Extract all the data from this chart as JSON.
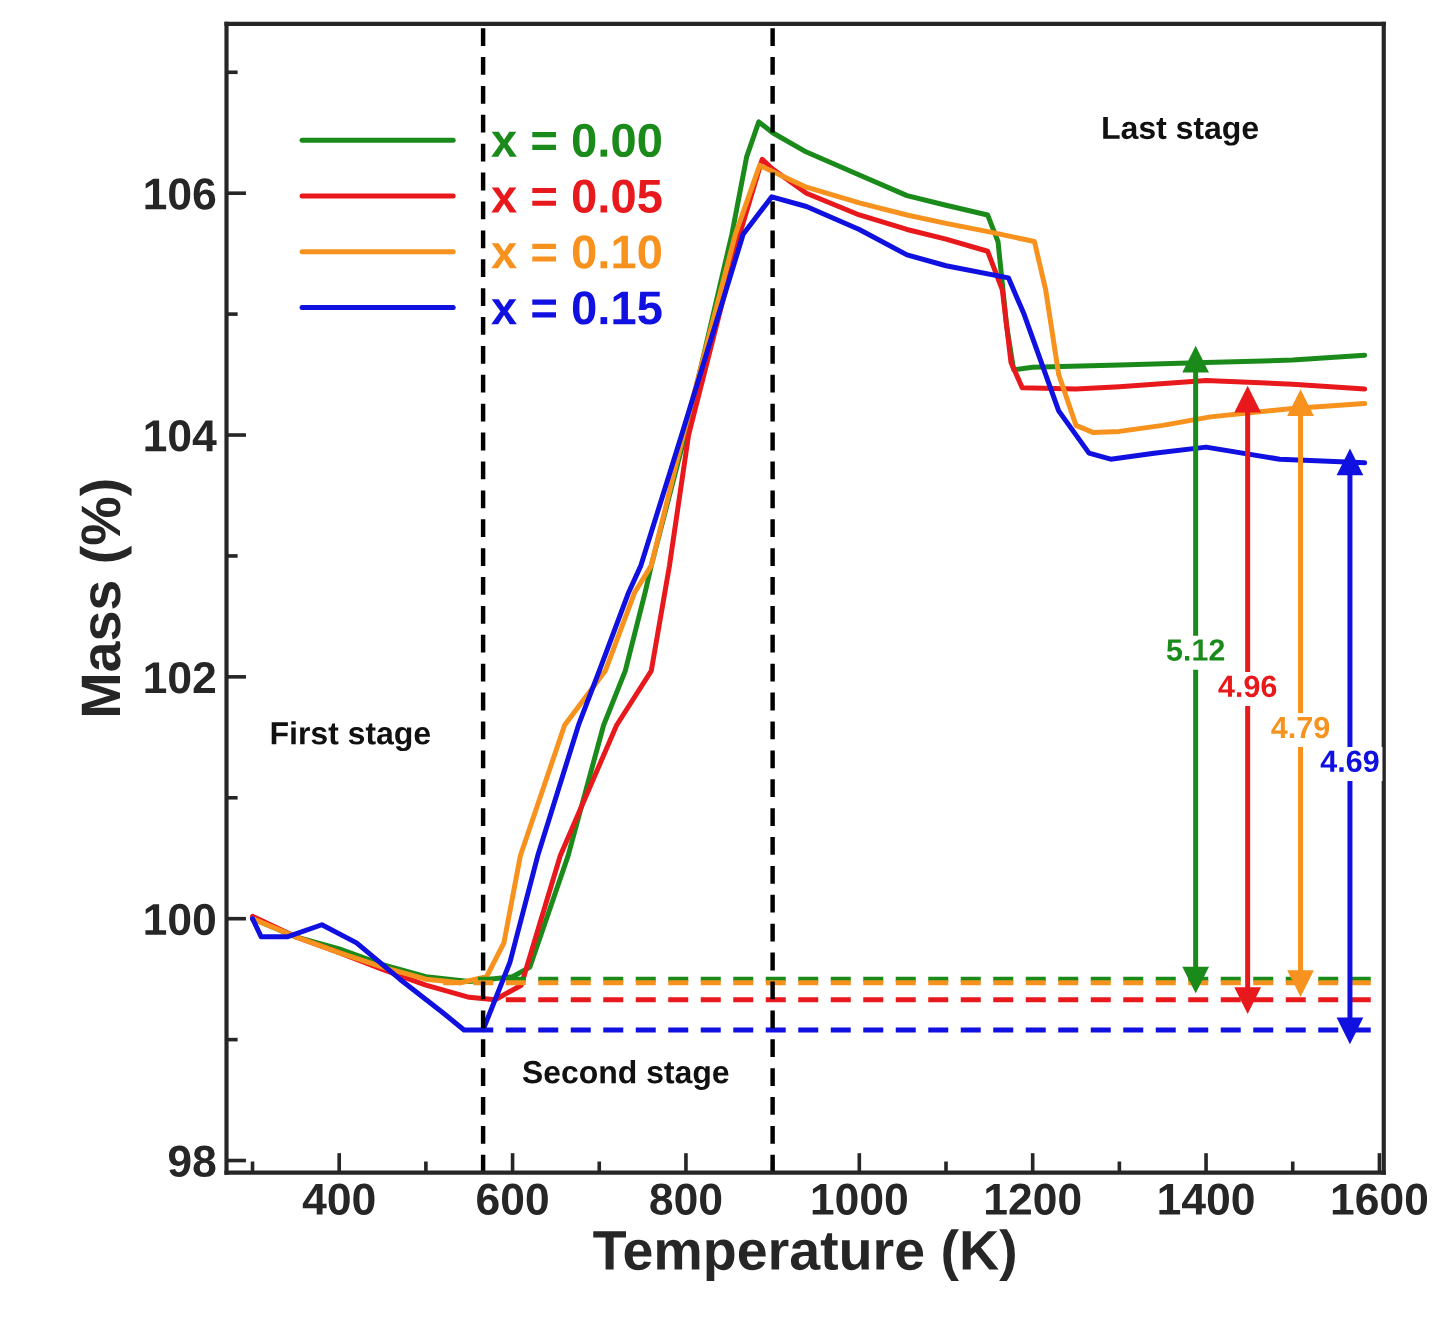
{
  "chart_data": {
    "type": "line",
    "xlabel": "Temperature (K)",
    "ylabel": "Mass (%)",
    "xlim": [
      270,
      1605
    ],
    "ylim": [
      97.9,
      107.4
    ],
    "xticks": [
      400,
      600,
      800,
      1000,
      1200,
      1400,
      1600
    ],
    "yticks": [
      98,
      100,
      102,
      104,
      106
    ],
    "grid": false,
    "legend": "top left",
    "line_style": "solid",
    "marker": "none",
    "series": [
      {
        "name": "x = 0.00",
        "color": "#1a8a1a",
        "x": [
          300,
          350,
          400,
          450,
          500,
          550,
          600,
          620,
          664,
          705,
          730,
          753,
          760,
          799,
          853,
          870,
          884,
          900,
          939,
          1000,
          1055,
          1100,
          1148,
          1160,
          1170,
          1178,
          1200,
          1300,
          1400,
          1500,
          1583
        ],
        "values": [
          100.0,
          99.85,
          99.75,
          99.62,
          99.52,
          99.48,
          99.52,
          99.6,
          100.52,
          101.6,
          102.05,
          102.7,
          102.92,
          104.0,
          105.66,
          106.3,
          106.59,
          106.5,
          106.34,
          106.15,
          105.98,
          105.9,
          105.82,
          105.6,
          104.9,
          104.54,
          104.56,
          104.58,
          104.6,
          104.62,
          104.66
        ]
      },
      {
        "name": "x = 0.05",
        "color": "#e8191c",
        "x": [
          300,
          350,
          400,
          450,
          500,
          550,
          580,
          610,
          655,
          720,
          760,
          781,
          803,
          862,
          888,
          900,
          939,
          1000,
          1055,
          1100,
          1148,
          1165,
          1175,
          1188,
          1250,
          1300,
          1400,
          1500,
          1583
        ],
        "values": [
          100.02,
          99.85,
          99.72,
          99.58,
          99.45,
          99.35,
          99.33,
          99.45,
          100.52,
          101.6,
          102.05,
          102.92,
          104.0,
          105.66,
          106.28,
          106.2,
          106.0,
          105.82,
          105.7,
          105.62,
          105.52,
          105.2,
          104.6,
          104.39,
          104.38,
          104.4,
          104.45,
          104.42,
          104.38
        ]
      },
      {
        "name": "x = 0.10",
        "color": "#f7921e",
        "x": [
          300,
          350,
          400,
          450,
          500,
          540,
          570,
          590,
          609,
          660,
          707,
          741,
          760,
          797,
          857,
          885,
          900,
          939,
          1000,
          1055,
          1100,
          1150,
          1202,
          1215,
          1230,
          1250,
          1270,
          1300,
          1350,
          1405,
          1500,
          1583
        ],
        "values": [
          100.0,
          99.85,
          99.72,
          99.6,
          99.5,
          99.47,
          99.52,
          99.8,
          100.52,
          101.6,
          102.05,
          102.7,
          102.92,
          104.0,
          105.66,
          106.23,
          106.18,
          106.05,
          105.92,
          105.82,
          105.75,
          105.68,
          105.6,
          105.2,
          104.5,
          104.08,
          104.02,
          104.03,
          104.08,
          104.15,
          104.22,
          104.26
        ]
      },
      {
        "name": "x = 0.15",
        "color": "#1010e0",
        "x": [
          300,
          310,
          340,
          380,
          420,
          470,
          520,
          544,
          566,
          597,
          629,
          676,
          700,
          734,
          748,
          795,
          866,
          899,
          939,
          1000,
          1055,
          1100,
          1172,
          1190,
          1230,
          1265,
          1290,
          1340,
          1400,
          1485,
          1583
        ],
        "values": [
          100.0,
          99.85,
          99.85,
          99.95,
          99.8,
          99.5,
          99.22,
          99.08,
          99.08,
          99.64,
          100.52,
          101.6,
          102.05,
          102.7,
          102.92,
          104.0,
          105.66,
          105.97,
          105.89,
          105.7,
          105.49,
          105.4,
          105.3,
          105.0,
          104.2,
          103.85,
          103.8,
          103.85,
          103.9,
          103.8,
          103.77
        ]
      },
      {
        "color": "#1a8a1a",
        "line_style": "dashed",
        "x": [
          560,
          1590
        ],
        "values": [
          99.5,
          99.5
        ]
      },
      {
        "color": "#f7921e",
        "line_style": "dashed",
        "x": [
          520,
          1590
        ],
        "values": [
          99.47,
          99.47
        ]
      },
      {
        "color": "#e8191c",
        "line_style": "dashed",
        "x": [
          580,
          1590
        ],
        "values": [
          99.33,
          99.33
        ]
      },
      {
        "color": "#1010e0",
        "line_style": "dashed",
        "x": [
          566,
          1590
        ],
        "values": [
          99.08,
          99.08
        ]
      },
      {
        "color": "#1a8a1a",
        "marker": "triangle",
        "x": [
          1388,
          1388
        ],
        "values": [
          99.5,
          104.62
        ]
      },
      {
        "color": "#e8191c",
        "marker": "triangle",
        "x": [
          1448,
          1448
        ],
        "values": [
          99.33,
          104.29
        ]
      },
      {
        "color": "#f7921e",
        "marker": "triangle",
        "x": [
          1509,
          1509
        ],
        "values": [
          99.47,
          104.26
        ]
      },
      {
        "color": "#1010e0",
        "marker": "triangle",
        "x": [
          1566,
          1566
        ],
        "values": [
          99.08,
          103.77
        ]
      }
    ],
    "ref_lines": [
      {
        "axis": "x",
        "value": 566,
        "color": "#000000",
        "line_style": "dashed"
      },
      {
        "axis": "x",
        "value": 900,
        "color": "#000000",
        "line_style": "dashed"
      }
    ],
    "annotations": [
      {
        "text": "5.12",
        "x": 1388,
        "y": 102.2
      },
      {
        "text": "4.96",
        "x": 1448,
        "y": 101.9
      },
      {
        "text": "4.79",
        "x": 1509,
        "y": 101.56
      },
      {
        "text": "4.69",
        "x": 1566,
        "y": 101.28
      },
      "First stage",
      "Second stage",
      "Last stage"
    ]
  }
}
